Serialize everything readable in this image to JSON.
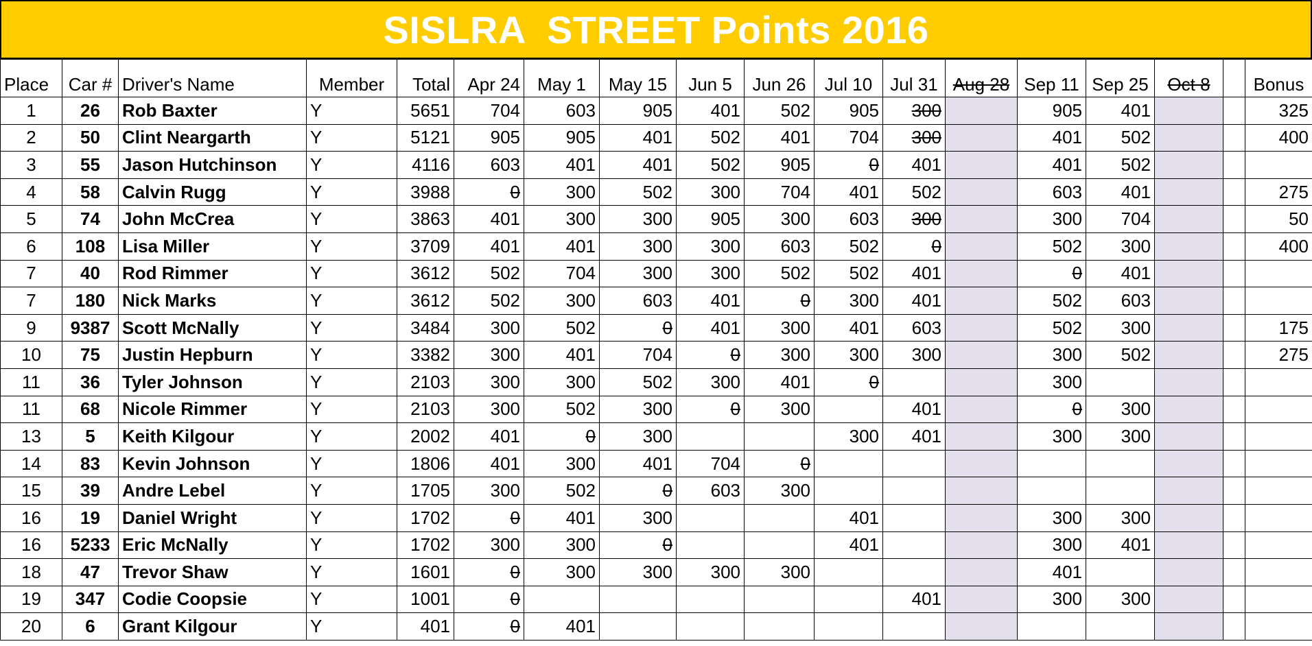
{
  "title": "SISLRA  STREET Points 2016",
  "colors": {
    "title_bg": "#ffcc00",
    "title_text": "#ffffff",
    "shaded_column": "#e4dfec"
  },
  "columns": {
    "place": "Place",
    "car": "Car #",
    "driver": "Driver's Name",
    "member": "Member",
    "total": "Total",
    "races": [
      "Apr 24",
      "May 1",
      "May 15",
      "Jun 5",
      "Jun 26",
      "Jul 10",
      "Jul 31",
      "Aug 28",
      "Sep 11",
      "Sep 25",
      "Oct 8",
      ""
    ],
    "bonus": "Bonus"
  },
  "cancelled_race_columns": [
    "Aug 28",
    "Oct 8"
  ],
  "rows": [
    {
      "place": "1",
      "car": "26",
      "driver": "Rob Baxter",
      "member": "Y",
      "total": "5651",
      "races": [
        "704",
        "603",
        "905",
        "401",
        "502",
        "905",
        "300",
        "",
        "905",
        "401",
        "",
        ""
      ],
      "struck": [
        6
      ],
      "bonus": "325"
    },
    {
      "place": "2",
      "car": "50",
      "driver": "Clint Neargarth",
      "member": "Y",
      "total": "5121",
      "races": [
        "905",
        "905",
        "401",
        "502",
        "401",
        "704",
        "300",
        "",
        "401",
        "502",
        "",
        ""
      ],
      "struck": [
        6
      ],
      "bonus": "400"
    },
    {
      "place": "3",
      "car": "55",
      "driver": "Jason Hutchinson",
      "member": "Y",
      "total": "4116",
      "races": [
        "603",
        "401",
        "401",
        "502",
        "905",
        "0",
        "401",
        "",
        "401",
        "502",
        "",
        ""
      ],
      "struck": [
        5
      ],
      "bonus": ""
    },
    {
      "place": "4",
      "car": "58",
      "driver": "Calvin Rugg",
      "member": "Y",
      "total": "3988",
      "races": [
        "0",
        "300",
        "502",
        "300",
        "704",
        "401",
        "502",
        "",
        "603",
        "401",
        "",
        ""
      ],
      "struck": [
        0
      ],
      "bonus": "275"
    },
    {
      "place": "5",
      "car": "74",
      "driver": "John McCrea",
      "member": "Y",
      "total": "3863",
      "races": [
        "401",
        "300",
        "300",
        "905",
        "300",
        "603",
        "300",
        "",
        "300",
        "704",
        "",
        ""
      ],
      "struck": [
        6
      ],
      "bonus": "50"
    },
    {
      "place": "6",
      "car": "108",
      "driver": "Lisa Miller",
      "member": "Y",
      "total": "3709",
      "races": [
        "401",
        "401",
        "300",
        "300",
        "603",
        "502",
        "0",
        "",
        "502",
        "300",
        "",
        ""
      ],
      "struck": [
        6
      ],
      "bonus": "400"
    },
    {
      "place": "7",
      "car": "40",
      "driver": "Rod Rimmer",
      "member": "Y",
      "total": "3612",
      "races": [
        "502",
        "704",
        "300",
        "300",
        "502",
        "502",
        "401",
        "",
        "0",
        "401",
        "",
        ""
      ],
      "struck": [
        8
      ],
      "bonus": ""
    },
    {
      "place": "7",
      "car": "180",
      "driver": "Nick Marks",
      "member": "Y",
      "total": "3612",
      "races": [
        "502",
        "300",
        "603",
        "401",
        "0",
        "300",
        "401",
        "",
        "502",
        "603",
        "",
        ""
      ],
      "struck": [
        4
      ],
      "bonus": ""
    },
    {
      "place": "9",
      "car": "9387",
      "driver": "Scott McNally",
      "member": "Y",
      "total": "3484",
      "races": [
        "300",
        "502",
        "0",
        "401",
        "300",
        "401",
        "603",
        "",
        "502",
        "300",
        "",
        ""
      ],
      "struck": [
        2
      ],
      "bonus": "175"
    },
    {
      "place": "10",
      "car": "75",
      "driver": "Justin Hepburn",
      "member": "Y",
      "total": "3382",
      "races": [
        "300",
        "401",
        "704",
        "0",
        "300",
        "300",
        "300",
        "",
        "300",
        "502",
        "",
        ""
      ],
      "struck": [
        3
      ],
      "bonus": "275"
    },
    {
      "place": "11",
      "car": "36",
      "driver": "Tyler Johnson",
      "member": "Y",
      "total": "2103",
      "races": [
        "300",
        "300",
        "502",
        "300",
        "401",
        "0",
        "",
        "",
        "300",
        "",
        "",
        ""
      ],
      "struck": [
        5
      ],
      "bonus": ""
    },
    {
      "place": "11",
      "car": "68",
      "driver": "Nicole Rimmer",
      "member": "Y",
      "total": "2103",
      "races": [
        "300",
        "502",
        "300",
        "0",
        "300",
        "",
        "401",
        "",
        "0",
        "300",
        "",
        ""
      ],
      "struck": [
        3,
        8
      ],
      "bonus": ""
    },
    {
      "place": "13",
      "car": "5",
      "driver": "Keith Kilgour",
      "member": "Y",
      "total": "2002",
      "races": [
        "401",
        "0",
        "300",
        "",
        "",
        "300",
        "401",
        "",
        "300",
        "300",
        "",
        ""
      ],
      "struck": [
        1
      ],
      "bonus": ""
    },
    {
      "place": "14",
      "car": "83",
      "driver": "Kevin Johnson",
      "member": "Y",
      "total": "1806",
      "races": [
        "401",
        "300",
        "401",
        "704",
        "0",
        "",
        "",
        "",
        "",
        "",
        "",
        ""
      ],
      "struck": [
        4
      ],
      "bonus": ""
    },
    {
      "place": "15",
      "car": "39",
      "driver": "Andre Lebel",
      "member": "Y",
      "total": "1705",
      "races": [
        "300",
        "502",
        "0",
        "603",
        "300",
        "",
        "",
        "",
        "",
        "",
        "",
        ""
      ],
      "struck": [
        2
      ],
      "bonus": ""
    },
    {
      "place": "16",
      "car": "19",
      "driver": "Daniel Wright",
      "member": "Y",
      "total": "1702",
      "races": [
        "0",
        "401",
        "300",
        "",
        "",
        "401",
        "",
        "",
        "300",
        "300",
        "",
        ""
      ],
      "struck": [
        0
      ],
      "bonus": ""
    },
    {
      "place": "16",
      "car": "5233",
      "driver": "Eric McNally",
      "member": "Y",
      "total": "1702",
      "races": [
        "300",
        "300",
        "0",
        "",
        "",
        "401",
        "",
        "",
        "300",
        "401",
        "",
        ""
      ],
      "struck": [
        2
      ],
      "bonus": ""
    },
    {
      "place": "18",
      "car": "47",
      "driver": "Trevor Shaw",
      "member": "Y",
      "total": "1601",
      "races": [
        "0",
        "300",
        "300",
        "300",
        "300",
        "",
        "",
        "",
        "401",
        "",
        "",
        ""
      ],
      "struck": [
        0
      ],
      "bonus": ""
    },
    {
      "place": "19",
      "car": "347",
      "driver": "Codie Coopsie",
      "member": "Y",
      "total": "1001",
      "races": [
        "0",
        "",
        "",
        "",
        "",
        "",
        "401",
        "",
        "300",
        "300",
        "",
        ""
      ],
      "struck": [
        0
      ],
      "bonus": ""
    },
    {
      "place": "20",
      "car": "6",
      "driver": "Grant Kilgour",
      "member": "Y",
      "total": "401",
      "races": [
        "0",
        "401",
        "",
        "",
        "",
        "",
        "",
        "",
        "",
        "",
        "",
        ""
      ],
      "struck": [
        0
      ],
      "bonus": ""
    }
  ]
}
